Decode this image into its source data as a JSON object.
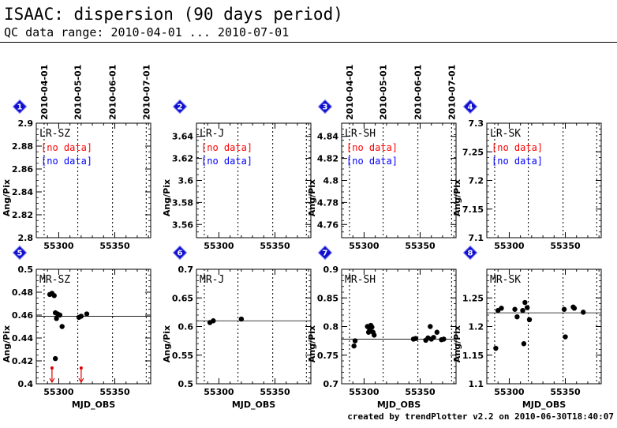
{
  "header": {
    "title": "ISAAC: dispersion (90 days period)",
    "subtitle": "QC data range: 2010-04-01 ... 2010-07-01"
  },
  "footer": "created by trendPlotter v2.2 on 2010-06-30T18:40:07",
  "colors": {
    "badge": "#1010cc",
    "no_data_1": "#ff0000",
    "no_data_2": "#0000ff",
    "limit_arrow": "#dd0000",
    "points": "#000000"
  },
  "chart_data": [
    {
      "type": "scatter",
      "badge": "1",
      "name": "LR-SZ",
      "xlabel": "",
      "ylabel": "Ang/Pix",
      "xlim": [
        55280,
        55382
      ],
      "ylim": [
        2.8,
        2.9
      ],
      "yticks": [
        "2.8",
        "2.82",
        "2.84",
        "2.86",
        "2.88",
        "2.9"
      ],
      "xticks": [
        "55300",
        "55350"
      ],
      "top_date_labels": [
        "2010-04-01",
        "2010-05-01",
        "2010-06-01",
        "2010-07-01"
      ],
      "no_data": [
        "[no data]",
        "[no data]"
      ],
      "points": [],
      "reference_line": null,
      "limit_arrows": []
    },
    {
      "type": "scatter",
      "badge": "2",
      "name": "LR-J",
      "xlabel": "",
      "ylabel": "Ang/Pix",
      "xlim": [
        55280,
        55382
      ],
      "ylim": [
        3.548,
        3.652
      ],
      "yticks": [
        "3.56",
        "3.58",
        "3.6",
        "3.62",
        "3.64"
      ],
      "xticks": [
        "55300",
        "55350"
      ],
      "top_date_labels": [],
      "no_data": [
        "[no data]",
        "[no data]"
      ],
      "points": [],
      "reference_line": null,
      "limit_arrows": []
    },
    {
      "type": "scatter",
      "badge": "3",
      "name": "LR-SH",
      "xlabel": "",
      "ylabel": "Ang/Pix",
      "xlim": [
        55280,
        55382
      ],
      "ylim": [
        4.748,
        4.852
      ],
      "yticks": [
        "4.76",
        "4.78",
        "4.8",
        "4.82",
        "4.84"
      ],
      "xticks": [
        "55300",
        "55350"
      ],
      "top_date_labels": [
        "2010-04-01",
        "2010-05-01",
        "2010-06-01",
        "2010-07-01"
      ],
      "no_data": [
        "[no data]",
        "[no data]"
      ],
      "points": [],
      "reference_line": null,
      "limit_arrows": []
    },
    {
      "type": "scatter",
      "badge": "4",
      "name": "LR-SK",
      "xlabel": "",
      "ylabel": "Ang/Pix",
      "xlim": [
        55280,
        55382
      ],
      "ylim": [
        7.1,
        7.3
      ],
      "yticks": [
        "7.1",
        "7.15",
        "7.2",
        "7.25",
        "7.3"
      ],
      "xticks": [
        "55300",
        "55350"
      ],
      "top_date_labels": [],
      "no_data": [
        "[no data]",
        "[no data]"
      ],
      "points": [],
      "reference_line": null,
      "limit_arrows": []
    },
    {
      "type": "scatter",
      "badge": "5",
      "name": "MR-SZ",
      "xlabel": "MJD_OBS",
      "ylabel": "Ang/Pix",
      "xlim": [
        55280,
        55382
      ],
      "ylim": [
        0.4,
        0.5
      ],
      "yticks": [
        "0.4",
        "0.42",
        "0.44",
        "0.46",
        "0.48",
        "0.5"
      ],
      "xticks": [
        "55300",
        "55350"
      ],
      "top_date_labels": [],
      "no_data": [],
      "points": [
        [
          55292,
          0.478
        ],
        [
          55294,
          0.479
        ],
        [
          55296,
          0.477
        ],
        [
          55297,
          0.462
        ],
        [
          55298,
          0.457
        ],
        [
          55299,
          0.461
        ],
        [
          55301,
          0.46
        ],
        [
          55297,
          0.422
        ],
        [
          55303,
          0.45
        ],
        [
          55318,
          0.458
        ],
        [
          55320,
          0.459
        ],
        [
          55325,
          0.461
        ]
      ],
      "reference_line": 0.459,
      "limit_arrows": [
        55294,
        55320
      ]
    },
    {
      "type": "scatter",
      "badge": "6",
      "name": "MR-J",
      "xlabel": "MJD_OBS",
      "ylabel": "Ang/Pix",
      "xlim": [
        55280,
        55382
      ],
      "ylim": [
        0.5,
        0.7
      ],
      "yticks": [
        "0.5",
        "0.55",
        "0.6",
        "0.65",
        "0.7"
      ],
      "xticks": [
        "55300",
        "55350"
      ],
      "top_date_labels": [],
      "no_data": [],
      "points": [
        [
          55292,
          0.607
        ],
        [
          55295,
          0.61
        ],
        [
          55320,
          0.613
        ]
      ],
      "reference_line": 0.61,
      "limit_arrows": []
    },
    {
      "type": "scatter",
      "badge": "7",
      "name": "MR-SH",
      "xlabel": "MJD_OBS",
      "ylabel": "Ang/Pix",
      "xlim": [
        55280,
        55382
      ],
      "ylim": [
        0.7,
        0.9
      ],
      "yticks": [
        "0.7",
        "0.75",
        "0.8",
        "0.85",
        "0.9"
      ],
      "xticks": [
        "55300",
        "55350"
      ],
      "top_date_labels": [],
      "no_data": [],
      "points": [
        [
          55291,
          0.766
        ],
        [
          55292,
          0.775
        ],
        [
          55303,
          0.8
        ],
        [
          55304,
          0.79
        ],
        [
          55305,
          0.795
        ],
        [
          55306,
          0.802
        ],
        [
          55307,
          0.799
        ],
        [
          55308,
          0.79
        ],
        [
          55309,
          0.785
        ],
        [
          55344,
          0.778
        ],
        [
          55346,
          0.779
        ],
        [
          55355,
          0.776
        ],
        [
          55357,
          0.78
        ],
        [
          55359,
          0.8
        ],
        [
          55360,
          0.778
        ],
        [
          55362,
          0.781
        ],
        [
          55365,
          0.79
        ],
        [
          55369,
          0.777
        ],
        [
          55371,
          0.778
        ]
      ],
      "reference_line": 0.778,
      "limit_arrows": []
    },
    {
      "type": "scatter",
      "badge": "8",
      "name": "MR-SK",
      "xlabel": "MJD_OBS",
      "ylabel": "Ang/Pix",
      "xlim": [
        55280,
        55382
      ],
      "ylim": [
        1.1,
        1.3
      ],
      "yticks": [
        "1.1",
        "1.15",
        "1.2",
        "1.25"
      ],
      "xticks": [
        "55300",
        "55350"
      ],
      "top_date_labels": [],
      "no_data": [],
      "points": [
        [
          55288,
          1.162
        ],
        [
          55290,
          1.228
        ],
        [
          55293,
          1.232
        ],
        [
          55305,
          1.23
        ],
        [
          55307,
          1.217
        ],
        [
          55312,
          1.228
        ],
        [
          55313,
          1.17
        ],
        [
          55314,
          1.242
        ],
        [
          55316,
          1.233
        ],
        [
          55318,
          1.212
        ],
        [
          55349,
          1.23
        ],
        [
          55350,
          1.182
        ],
        [
          55357,
          1.234
        ],
        [
          55358,
          1.232
        ],
        [
          55366,
          1.225
        ]
      ],
      "reference_line": 1.224,
      "limit_arrows": []
    }
  ]
}
